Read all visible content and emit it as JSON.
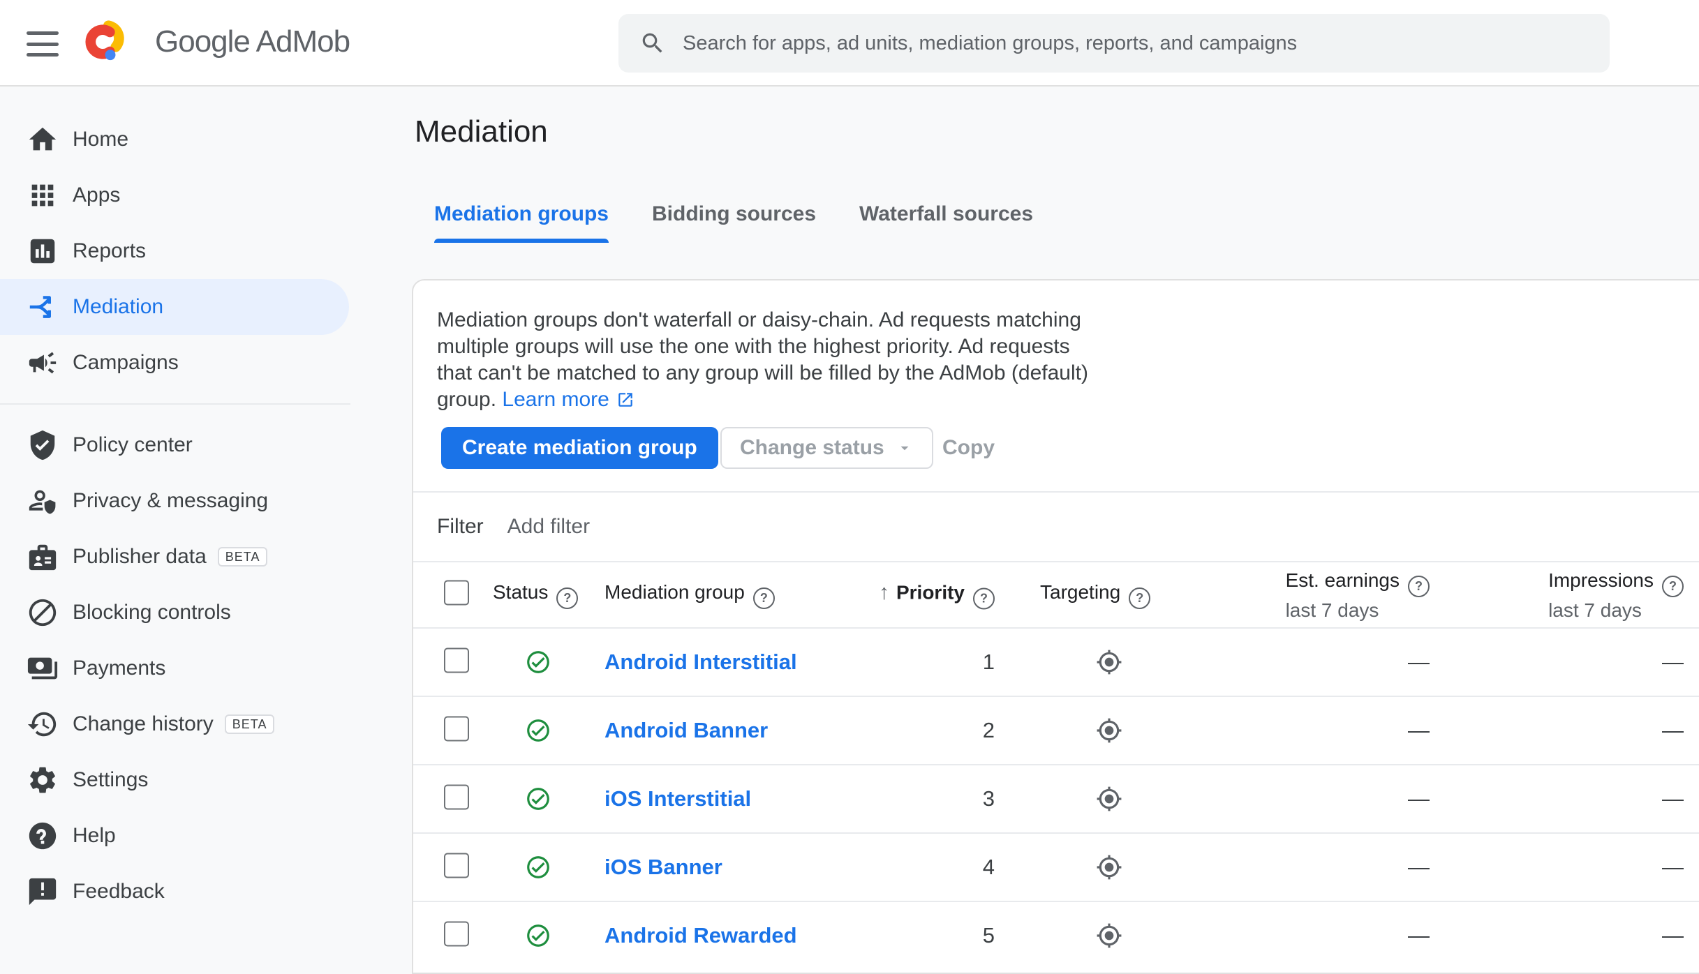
{
  "header": {
    "product_name": "Google AdMob",
    "search_placeholder": "Search for apps, ad units, mediation groups, reports, and campaigns"
  },
  "sidebar": {
    "beta_label": "BETA",
    "items": [
      {
        "label": "Home",
        "icon": "home"
      },
      {
        "label": "Apps",
        "icon": "apps"
      },
      {
        "label": "Reports",
        "icon": "reports"
      },
      {
        "label": "Mediation",
        "icon": "mediation",
        "selected": true
      },
      {
        "label": "Campaigns",
        "icon": "campaigns"
      },
      {
        "divider": true
      },
      {
        "label": "Policy center",
        "icon": "policy"
      },
      {
        "label": "Privacy & messaging",
        "icon": "privacy"
      },
      {
        "label": "Publisher data",
        "icon": "publisher",
        "beta": true
      },
      {
        "label": "Blocking controls",
        "icon": "blocking"
      },
      {
        "label": "Payments",
        "icon": "payments"
      },
      {
        "label": "Change history",
        "icon": "history",
        "beta": true
      },
      {
        "label": "Settings",
        "icon": "settings"
      },
      {
        "label": "Help",
        "icon": "help"
      },
      {
        "label": "Feedback",
        "icon": "feedback"
      }
    ]
  },
  "page": {
    "title": "Mediation"
  },
  "tabs": [
    {
      "label": "Mediation groups",
      "selected": true
    },
    {
      "label": "Bidding sources",
      "selected": false
    },
    {
      "label": "Waterfall sources",
      "selected": false
    }
  ],
  "card": {
    "description_lines": [
      "Mediation groups don't waterfall or daisy-chain. Ad requests matching",
      "multiple groups will use the one with the highest priority. Ad requests",
      "that can't be matched to any group will be filled by the AdMob (default)",
      "group."
    ],
    "learn_more_label": "Learn more",
    "buttons": {
      "create": "Create mediation group",
      "change_status": "Change status",
      "copy": "Copy"
    },
    "filter": {
      "label": "Filter",
      "add_label": "Add filter"
    }
  },
  "table": {
    "columns": {
      "status": "Status",
      "mediation_group": "Mediation group",
      "priority": "Priority",
      "targeting": "Targeting",
      "est_earnings": "Est. earnings",
      "impressions": "Impressions",
      "last7": "last 7 days"
    },
    "rows": [
      {
        "status": "enabled",
        "name": "Android Interstitial",
        "priority": "1",
        "est_earnings": "—",
        "impressions": "—"
      },
      {
        "status": "enabled",
        "name": "Android Banner",
        "priority": "2",
        "est_earnings": "—",
        "impressions": "—"
      },
      {
        "status": "enabled",
        "name": "iOS Interstitial",
        "priority": "3",
        "est_earnings": "—",
        "impressions": "—"
      },
      {
        "status": "enabled",
        "name": "iOS Banner",
        "priority": "4",
        "est_earnings": "—",
        "impressions": "—"
      },
      {
        "status": "enabled",
        "name": "Android Rewarded",
        "priority": "5",
        "est_earnings": "—",
        "impressions": "—"
      }
    ]
  },
  "colors": {
    "accent": "#1a73e8",
    "selected_nav_bg": "#e8f0fe",
    "status_green": "#1e8e3e",
    "logo_red": "#ea4335",
    "logo_yellow": "#fbbc04",
    "logo_blue": "#4285f4"
  }
}
